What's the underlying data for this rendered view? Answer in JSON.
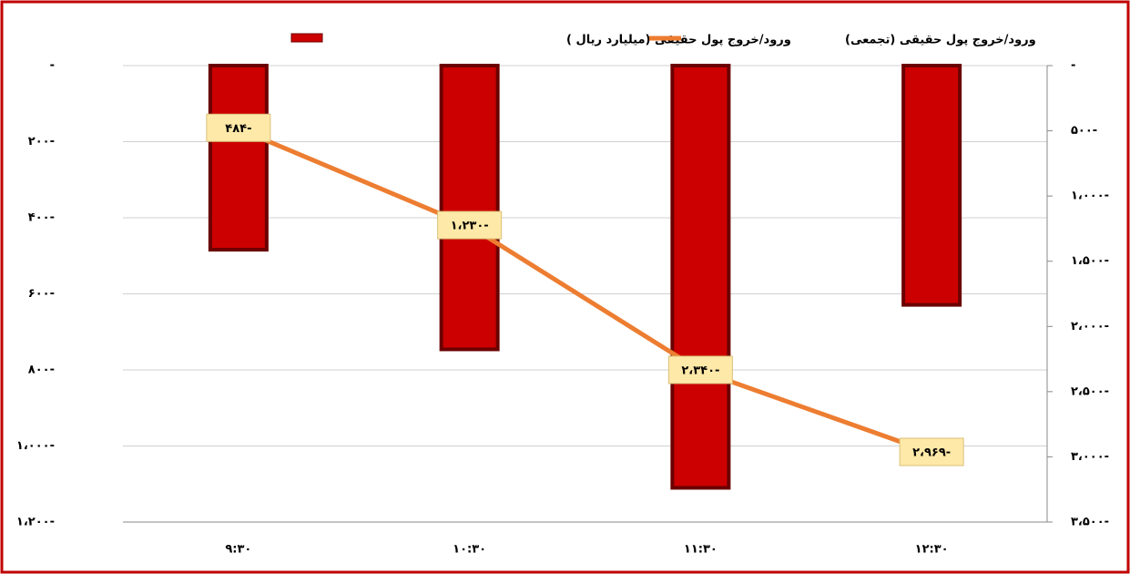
{
  "chart_data": {
    "type": "bar_line",
    "categories": [
      "۹:۳۰",
      "۱۰:۳۰",
      "۱۱:۳۰",
      "۱۲:۳۰"
    ],
    "series": [
      {
        "name": "ورود/خروج پول حقیقی (میلیارد ریال )",
        "type": "bar",
        "color": "#cc0000",
        "values": [
          -484,
          -746,
          -1110,
          -629
        ]
      },
      {
        "name": "ورود/خروج پول حقیقی (تجمعی)",
        "type": "line",
        "axis": "y2",
        "color": "#ed7d31",
        "values": [
          -484,
          -1230,
          -2340,
          -2969
        ],
        "value_labels": [
          "۴۸۴-",
          "۱،۲۳۰-",
          "۲،۳۴۰-",
          "۲،۹۶۹-"
        ]
      }
    ],
    "ylim": [
      -1200,
      0
    ],
    "yticks": [
      {
        "value": 0,
        "label": "-"
      },
      {
        "value": -200,
        "label": "۲۰۰-"
      },
      {
        "value": -400,
        "label": "۴۰۰-"
      },
      {
        "value": -600,
        "label": "۶۰۰-"
      },
      {
        "value": -800,
        "label": "۸۰۰-"
      },
      {
        "value": -1000,
        "label": "۱،۰۰۰-"
      },
      {
        "value": -1200,
        "label": "۱،۲۰۰-"
      }
    ],
    "y2lim": [
      -3500,
      0
    ],
    "y2ticks": [
      {
        "value": 0,
        "label": "-"
      },
      {
        "value": -500,
        "label": "۵۰۰-"
      },
      {
        "value": -1000,
        "label": "۱،۰۰۰-"
      },
      {
        "value": -1500,
        "label": "۱،۵۰۰-"
      },
      {
        "value": -2000,
        "label": "۲،۰۰۰-"
      },
      {
        "value": -2500,
        "label": "۲،۵۰۰-"
      },
      {
        "value": -3000,
        "label": "۳،۰۰۰-"
      },
      {
        "value": -3500,
        "label": "۳،۵۰۰-"
      }
    ],
    "grid": true,
    "legend": "top"
  }
}
